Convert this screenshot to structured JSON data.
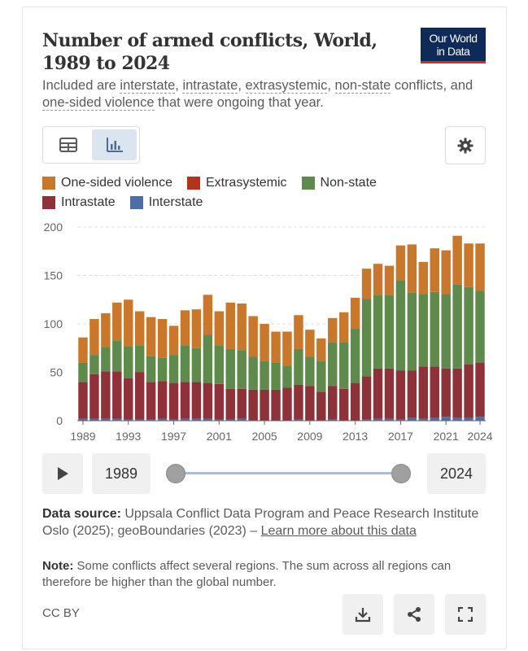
{
  "header": {
    "title": "Number of armed conflicts, World, 1989 to 2024",
    "logo_line1": "Our World",
    "logo_line2": "in Data",
    "subtitle_parts": [
      "Included are ",
      "interstate",
      ", ",
      "intrastate",
      ", ",
      "extrasystemic",
      ", ",
      "non-state",
      " conflicts, and ",
      "one-sided violence",
      " that were ongoing that year."
    ]
  },
  "toolbar": {
    "table_icon": "table-icon",
    "chart_icon": "bar-chart-icon",
    "settings_icon": "gear-icon"
  },
  "colors": {
    "one_sided": "#c8772b",
    "extrasystemic": "#b5321c",
    "non_state": "#5e8b4b",
    "intrastate": "#8f3138",
    "interstate": "#4f6fa4",
    "grid": "#dddddd",
    "axis": "#666666"
  },
  "legend": [
    {
      "label": "One-sided violence",
      "color": "#c8772b"
    },
    {
      "label": "Extrasystemic",
      "color": "#b5321c"
    },
    {
      "label": "Non-state",
      "color": "#5e8b4b"
    },
    {
      "label": "Intrastate",
      "color": "#8f3138"
    },
    {
      "label": "Interstate",
      "color": "#4f6fa4"
    }
  ],
  "chart_data": {
    "type": "bar",
    "stacked": true,
    "ylim": [
      0,
      200
    ],
    "y_ticks": [
      0,
      50,
      100,
      150,
      200
    ],
    "x_tick_labels": [
      "1989",
      "1993",
      "1997",
      "2001",
      "2005",
      "2009",
      "2013",
      "2017",
      "2021",
      "2024"
    ],
    "grid": true,
    "categories": [
      "1989",
      "1990",
      "1991",
      "1992",
      "1993",
      "1994",
      "1995",
      "1996",
      "1997",
      "1998",
      "1999",
      "2000",
      "2001",
      "2002",
      "2003",
      "2004",
      "2005",
      "2006",
      "2007",
      "2008",
      "2009",
      "2010",
      "2011",
      "2012",
      "2013",
      "2014",
      "2015",
      "2016",
      "2017",
      "2018",
      "2019",
      "2020",
      "2021",
      "2022",
      "2023",
      "2024"
    ],
    "series": [
      {
        "name": "Interstate",
        "values": [
          2,
          2,
          2,
          2,
          1,
          1,
          1,
          2,
          1,
          2,
          2,
          2,
          1,
          1,
          2,
          0,
          0,
          0,
          0,
          1,
          0,
          0,
          1,
          0,
          0,
          1,
          2,
          2,
          1,
          3,
          2,
          3,
          4,
          3,
          3,
          4
        ]
      },
      {
        "name": "Intrastate",
        "values": [
          38,
          46,
          49,
          49,
          43,
          49,
          39,
          39,
          38,
          38,
          38,
          37,
          37,
          32,
          31,
          32,
          32,
          32,
          34,
          36,
          36,
          30,
          35,
          33,
          39,
          45,
          52,
          52,
          51,
          49,
          54,
          53,
          50,
          51,
          55,
          56
        ]
      },
      {
        "name": "Extrasystemic",
        "values": [
          0,
          0,
          0,
          0,
          0,
          0,
          0,
          0,
          0,
          0,
          0,
          0,
          0,
          0,
          0,
          0,
          0,
          0,
          0,
          0,
          0,
          0,
          0,
          0,
          0,
          0,
          0,
          0,
          0,
          0,
          0,
          0,
          0,
          0,
          0,
          0
        ]
      },
      {
        "name": "Non-state",
        "values": [
          20,
          20,
          25,
          32,
          33,
          28,
          27,
          24,
          29,
          38,
          35,
          50,
          40,
          41,
          40,
          34,
          30,
          28,
          23,
          37,
          30,
          32,
          45,
          48,
          56,
          80,
          76,
          76,
          93,
          80,
          75,
          77,
          77,
          87,
          80,
          74
        ]
      },
      {
        "name": "One-sided violence",
        "values": [
          26,
          37,
          35,
          39,
          48,
          35,
          40,
          40,
          30,
          36,
          40,
          41,
          35,
          48,
          48,
          42,
          38,
          32,
          35,
          35,
          28,
          23,
          25,
          31,
          32,
          31,
          32,
          30,
          36,
          50,
          33,
          45,
          45,
          50,
          45,
          49
        ]
      }
    ]
  },
  "timeline": {
    "play_icon": "play-icon",
    "start_year": "1989",
    "end_year": "2024"
  },
  "footer": {
    "source_label": "Data source:",
    "source_text": " Uppsala Conflict Data Program and Peace Research Institute Oslo (2025); geoBoundaries (2023) – ",
    "source_link": "Learn more about this data",
    "note_label": "Note:",
    "note_text": " Some conflicts affect several regions. The sum across all regions can therefore be higher than the global number.",
    "license": "CC BY",
    "download_icon": "download-icon",
    "share_icon": "share-icon",
    "fullscreen_icon": "fullscreen-icon"
  }
}
